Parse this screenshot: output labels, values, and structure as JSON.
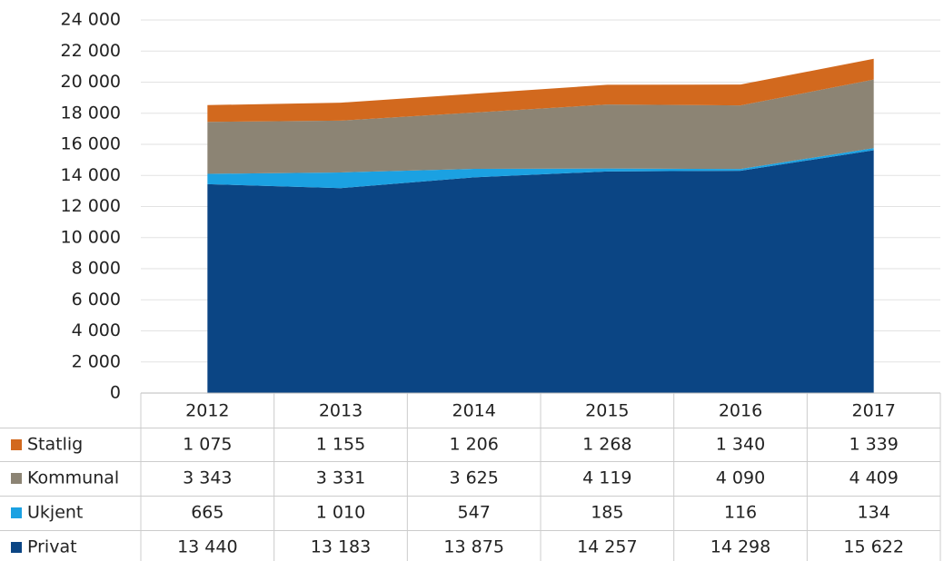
{
  "chart_data": {
    "type": "stacked_area",
    "categories": [
      "2012",
      "2013",
      "2014",
      "2015",
      "2016",
      "2017"
    ],
    "series": [
      {
        "name": "Privat",
        "color": "#0b4584",
        "values": [
          13440,
          13183,
          13875,
          14257,
          14298,
          15622
        ],
        "value_labels": [
          "13 440",
          "13 183",
          "13 875",
          "14 257",
          "14 298",
          "15 622"
        ]
      },
      {
        "name": "Ukjent",
        "color": "#1ba1e2",
        "values": [
          665,
          1010,
          547,
          185,
          116,
          134
        ],
        "value_labels": [
          "665",
          "1 010",
          "547",
          "185",
          "116",
          "134"
        ]
      },
      {
        "name": "Kommunal",
        "color": "#8c8474",
        "values": [
          3343,
          3331,
          3625,
          4119,
          4090,
          4409
        ],
        "value_labels": [
          "3 343",
          "3 331",
          "3 625",
          "4 119",
          "4 090",
          "4 409"
        ]
      },
      {
        "name": "Statlig",
        "color": "#d2691e",
        "values": [
          1075,
          1155,
          1206,
          1268,
          1340,
          1339
        ],
        "value_labels": [
          "1 075",
          "1 155",
          "1 206",
          "1 268",
          "1 340",
          "1 339"
        ]
      }
    ],
    "ylim": [
      0,
      24000
    ],
    "yticks": [
      0,
      {
        "value": 2000,
        "label": "2 000"
      },
      {
        "value": 4000,
        "label": "4 000"
      },
      {
        "value": 6000,
        "label": "6 000"
      },
      {
        "value": 8000,
        "label": "8 000"
      },
      {
        "value": 10000,
        "label": "10 000"
      },
      {
        "value": 12000,
        "label": "12 000"
      },
      {
        "value": 14000,
        "label": "14 000"
      },
      {
        "value": 16000,
        "label": "16 000"
      },
      {
        "value": 18000,
        "label": "18 000"
      },
      {
        "value": 20000,
        "label": "20 000"
      },
      {
        "value": 22000,
        "label": "22 000"
      },
      {
        "value": 24000,
        "label": "24 000"
      }
    ],
    "grid": true
  }
}
